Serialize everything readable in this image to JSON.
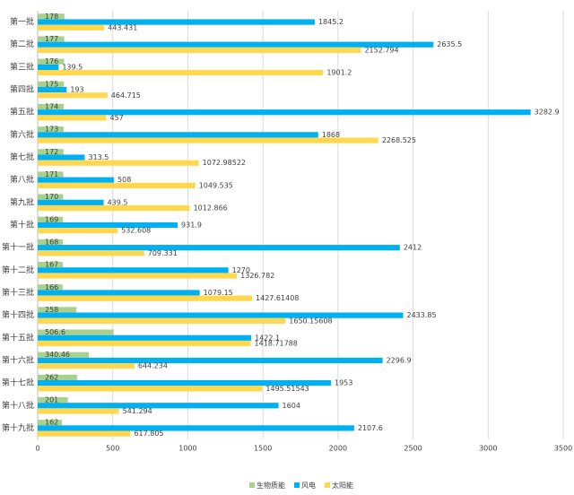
{
  "chart_data": {
    "type": "hbar",
    "categories": [
      "第一批",
      "第二批",
      "第三批",
      "第四批",
      "第五批",
      "第六批",
      "第七批",
      "第八批",
      "第九批",
      "第十批",
      "第十一批",
      "第十二批",
      "第十三批",
      "第十四批",
      "第十五批",
      "第十六批",
      "第十七批",
      "第十八批",
      "第十九批"
    ],
    "series": [
      {
        "name": "生物质能",
        "color": "#a9d18e",
        "values": [
          178,
          177,
          176,
          175,
          174,
          173,
          172,
          171,
          170,
          169,
          168,
          167,
          166,
          258,
          506.6,
          340.46,
          262,
          201,
          162
        ]
      },
      {
        "name": "风电",
        "color": "#00b0f0",
        "values": [
          1845.2,
          2635.5,
          139.5,
          193,
          3282.9,
          1868,
          313.5,
          508,
          439.5,
          931.9,
          2412,
          1270,
          1079.15,
          2433.85,
          1422.1,
          2296.9,
          1953,
          1604,
          2107.6
        ]
      },
      {
        "name": "太阳能",
        "color": "#ffd84f",
        "values": [
          443.431,
          2152.794,
          1901.2,
          464.715,
          457,
          2268.525,
          1072.98522,
          1049.535,
          1012.866,
          532.608,
          709.331,
          1326.782,
          1427.61408,
          1650.15608,
          1418.71788,
          644.234,
          1495.51543,
          541.294,
          617.805
        ]
      }
    ],
    "xlim": [
      0,
      3500
    ],
    "xticks": [
      0,
      500,
      1000,
      1500,
      2000,
      2500,
      3000,
      3500
    ],
    "grid": true,
    "legend": "bottom"
  }
}
